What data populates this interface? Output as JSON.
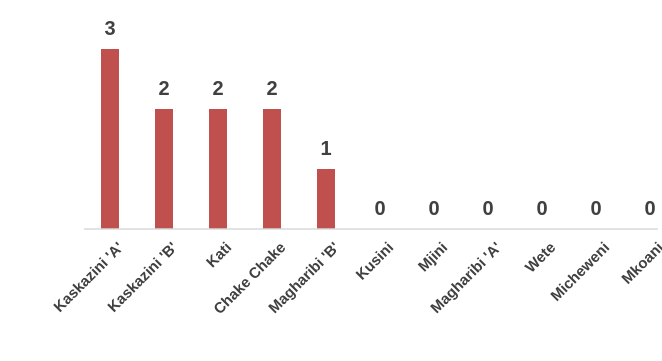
{
  "chart_data": {
    "type": "bar",
    "title": "",
    "xlabel": "",
    "ylabel": "",
    "categories": [
      "Kaskazini 'A'",
      "Kaskazini 'B'",
      "Kati",
      "Chake Chake",
      "Magharibi 'B'",
      "Kusini",
      "Mjini",
      "Magharibi 'A'",
      "Wete",
      "Micheweni",
      "Mkoani"
    ],
    "values": [
      3,
      2,
      2,
      2,
      1,
      0,
      0,
      0,
      0,
      0,
      0
    ],
    "ylim": [
      0,
      3
    ],
    "grid": false,
    "legend": "none",
    "bar_color": "#c0504d",
    "axis_color": "#d9d9d9",
    "label_color": "#404040"
  }
}
